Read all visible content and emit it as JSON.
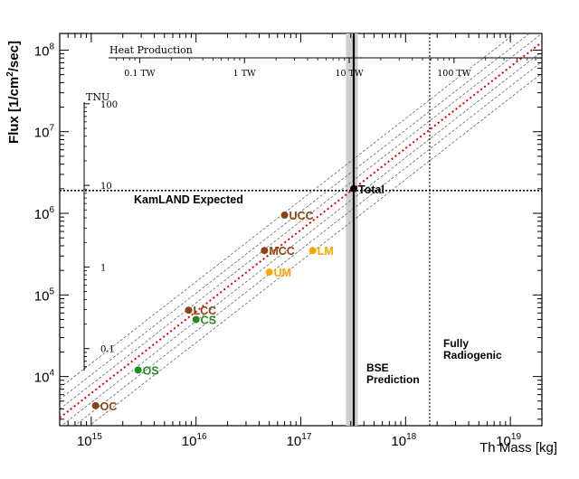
{
  "chart_data": {
    "type": "scatter",
    "xlabel": "Th Mass [kg]",
    "ylabel": "Flux [1/cm²/sec]",
    "xscale": "log",
    "yscale": "log",
    "xlim": [
      500000000000000.0,
      2e+19
    ],
    "ylim": [
      2500,
      160000000.0
    ],
    "x_ticks": [
      {
        "value": 1000000000000000.0,
        "base": "10",
        "exp": "15"
      },
      {
        "value": 1e+16,
        "base": "10",
        "exp": "16"
      },
      {
        "value": 1e+17,
        "base": "10",
        "exp": "17"
      },
      {
        "value": 1e+18,
        "base": "10",
        "exp": "18"
      },
      {
        "value": 1e+19,
        "base": "10",
        "exp": "19"
      }
    ],
    "y_ticks": [
      {
        "value": 10000.0,
        "base": "10",
        "exp": "4"
      },
      {
        "value": 100000.0,
        "base": "10",
        "exp": "5"
      },
      {
        "value": 1000000.0,
        "base": "10",
        "exp": "6"
      },
      {
        "value": 10000000.0,
        "base": "10",
        "exp": "7"
      },
      {
        "value": 100000000.0,
        "base": "10",
        "exp": "8"
      }
    ],
    "heat_axis": {
      "label": "Heat Production",
      "ticks": [
        {
          "label": "0.1 TW",
          "mass": 2900000000000000.0
        },
        {
          "label": "1 TW",
          "mass": 2.9e+16
        },
        {
          "label": "10 TW",
          "mass": 2.9e+17
        },
        {
          "label": "100 TW",
          "mass": 2.9e+18
        }
      ]
    },
    "tnu_axis": {
      "label": "TNU",
      "ticks": [
        {
          "label": "100",
          "flux": 22000000.0
        },
        {
          "label": "10",
          "flux": 2200000.0
        },
        {
          "label": "1",
          "flux": 220000.0
        },
        {
          "label": "0.1",
          "flux": 22000.0
        }
      ]
    },
    "kamland_expected": {
      "label": "KamLAND Expected",
      "flux": 1900000.0
    },
    "bse_prediction": {
      "label": [
        "BSE",
        "Prediction"
      ],
      "mass": 3.2e+17,
      "band": [
        2.7e+17,
        3.5e+17
      ]
    },
    "fully_radiogenic": {
      "label": [
        "Fully",
        "Radiogenic"
      ],
      "mass": 1.7e+18
    },
    "points": [
      {
        "label": "OC",
        "mass": 1100000000000000.0,
        "flux": 4400.0,
        "color": "#8b4513"
      },
      {
        "label": "OS",
        "mass": 2800000000000000.0,
        "flux": 12000.0,
        "color": "#228b22"
      },
      {
        "label": "CS",
        "mass": 1e+16,
        "flux": 50000.0,
        "color": "#228b22"
      },
      {
        "label": "LCC",
        "mass": 8500000000000000.0,
        "flux": 65000.0,
        "color": "#8b4513"
      },
      {
        "label": "MCC",
        "mass": 4.5e+16,
        "flux": 350000.0,
        "color": "#8b4513"
      },
      {
        "label": "UM",
        "mass": 5e+16,
        "flux": 190000.0,
        "color": "#ffa500"
      },
      {
        "label": "LM",
        "mass": 1.3e+17,
        "flux": 350000.0,
        "color": "#ffa500"
      },
      {
        "label": "UCC",
        "mass": 7e+16,
        "flux": 950000.0,
        "color": "#8b4513"
      },
      {
        "label": "Total",
        "mass": 3.2e+17,
        "flux": 2000000.0,
        "color": "#000000"
      }
    ],
    "fit_line": {
      "color": "#e00000",
      "slope": 1.0,
      "k": 6.25e-12
    },
    "band_lines": {
      "color": "#666666",
      "slope": 1.0,
      "k": [
        2.6e-12,
        3.6e-12,
        4.8e-12,
        8e-12,
        1.05e-11,
        1.45e-11
      ]
    }
  }
}
